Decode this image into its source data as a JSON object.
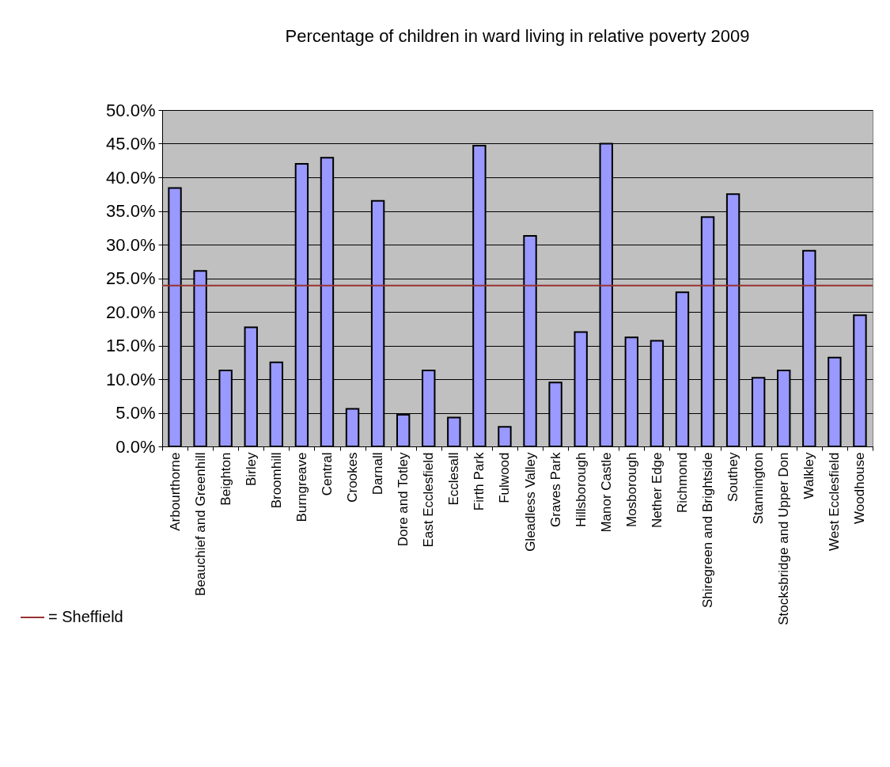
{
  "chart_data": {
    "type": "bar",
    "title": "Percentage of children in ward living in relative poverty 2009",
    "categories": [
      "Arbourthorne",
      "Beauchief and Greenhill",
      "Beighton",
      "Birley",
      "Broomhill",
      "Burngreave",
      "Central",
      "Crookes",
      "Darnall",
      "Dore and Totley",
      "East Ecclesfield",
      "Ecclesall",
      "Firth Park",
      "Fulwood",
      "Gleadless Valley",
      "Graves Park",
      "Hillsborough",
      "Manor Castle",
      "Mosborough",
      "Nether Edge",
      "Richmond",
      "Shiregreen and Brightside",
      "Southey",
      "Stannington",
      "Stocksbridge and Upper Don",
      "Walkley",
      "West Ecclesfield",
      "Woodhouse"
    ],
    "values": [
      38.4,
      26.1,
      11.3,
      17.7,
      12.5,
      42.0,
      42.9,
      5.6,
      36.5,
      4.7,
      11.3,
      4.3,
      44.7,
      2.9,
      31.3,
      9.5,
      17.0,
      45.0,
      16.2,
      15.7,
      22.9,
      34.1,
      37.5,
      10.2,
      11.3,
      29.1,
      13.2,
      19.5
    ],
    "color": "#9999ff",
    "ylim": [
      0,
      50
    ],
    "yticks": [
      {
        "value": 0,
        "label": "0.0%"
      },
      {
        "value": 5,
        "label": "5.0%"
      },
      {
        "value": 10,
        "label": "10.0%"
      },
      {
        "value": 15,
        "label": "15.0%"
      },
      {
        "value": 20,
        "label": "20.0%"
      },
      {
        "value": 25,
        "label": "25.0%"
      },
      {
        "value": 30,
        "label": "30.0%"
      },
      {
        "value": 35,
        "label": "35.0%"
      },
      {
        "value": 40,
        "label": "40.0%"
      },
      {
        "value": 45,
        "label": "45.0%"
      },
      {
        "value": 50,
        "label": "50.0%"
      }
    ],
    "grid": "y",
    "legend": "bottom left",
    "ref_lines": [
      {
        "axis": "y",
        "value": 23.9,
        "label": "= Sheffield",
        "color": "#993333"
      }
    ]
  }
}
